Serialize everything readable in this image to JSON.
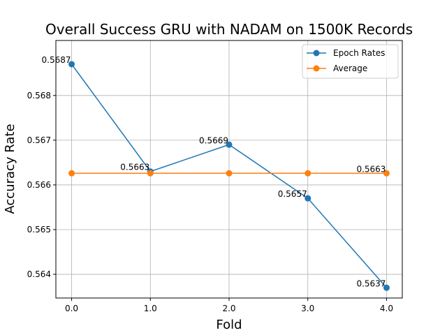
{
  "chart_data": {
    "type": "line",
    "title": "Overall Success GRU with NADAM on 1500K Records",
    "xlabel": "Fold",
    "ylabel": "Accuracy Rate",
    "x": [
      0,
      1,
      2,
      3,
      4
    ],
    "x_tick_labels": [
      "0.0",
      "1.0",
      "2.0",
      "3.0",
      "4.0"
    ],
    "y_ticks": [
      0.564,
      0.565,
      0.566,
      0.567,
      0.568
    ],
    "y_tick_labels": [
      "0.564",
      "0.565",
      "0.566",
      "0.567",
      "0.568"
    ],
    "xlim": [
      -0.2,
      4.2
    ],
    "ylim": [
      0.56347,
      0.56923
    ],
    "grid": true,
    "legend_position": "top-right",
    "series": [
      {
        "name": "Epoch Rates",
        "color": "#1f77b4",
        "values": [
          0.5687,
          0.5663,
          0.5669,
          0.5657,
          0.5637
        ],
        "data_labels": [
          "0.5687",
          "0.5663",
          "0.5669",
          "0.5657",
          "0.5637"
        ]
      },
      {
        "name": "Average",
        "color": "#ff7f0e",
        "values": [
          0.56626,
          0.56626,
          0.56626,
          0.56626,
          0.56626
        ],
        "data_labels": [
          "",
          "",
          "",
          "",
          "0.5663"
        ]
      }
    ]
  }
}
